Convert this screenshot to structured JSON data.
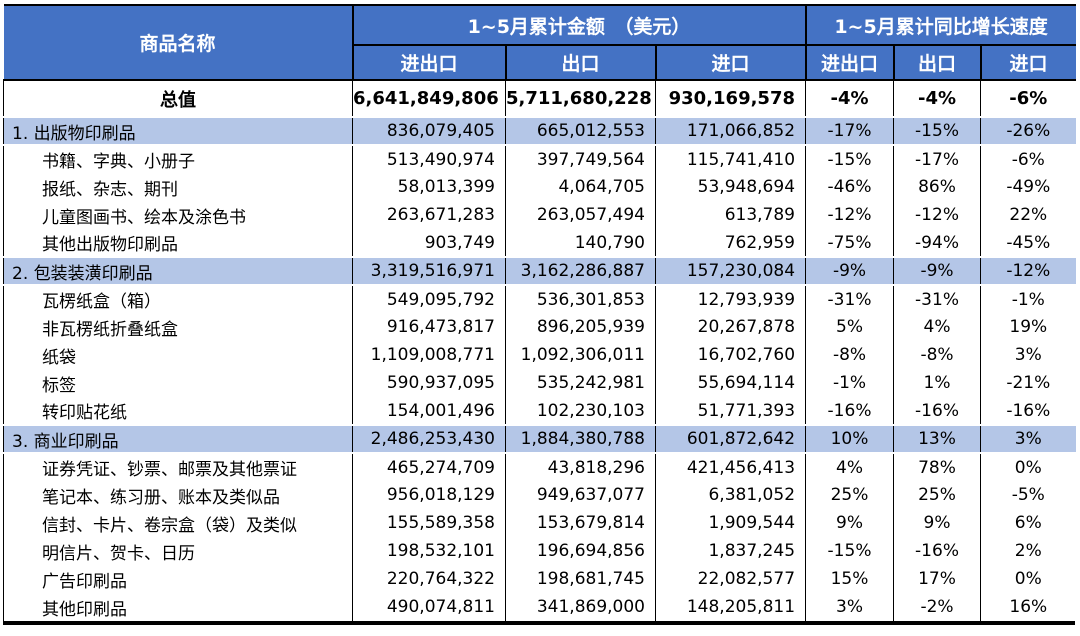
{
  "colors": {
    "header_bg": "#4472C4",
    "header_text": "#FFFFFF",
    "section_row_bg": "#B4C6E7",
    "border": "#000000",
    "body_bg": "#FFFFFF"
  },
  "chart_data": {
    "type": "table",
    "header": {
      "product": "商品名称",
      "amount_group": "1~5月累计金额　（美元）",
      "growth_group": "1~5月累计同比增长速度",
      "amount_subcols": [
        "进出口",
        "出口",
        "进口"
      ],
      "growth_subcols": [
        "进出口",
        "出口",
        "进口"
      ]
    },
    "total_row": {
      "name": "总值",
      "values": [
        "6,641,849,806",
        "5,711,680,228",
        "930,169,578",
        "-4%",
        "-4%",
        "-6%"
      ]
    },
    "rows": [
      {
        "name": "1. 出版物印刷品",
        "level": "section",
        "values": [
          "836,079,405",
          "665,012,553",
          "171,066,852",
          "-17%",
          "-15%",
          "-26%"
        ]
      },
      {
        "name": "书籍、字典、小册子",
        "level": "item",
        "values": [
          "513,490,974",
          "397,749,564",
          "115,741,410",
          "-15%",
          "-17%",
          "-6%"
        ]
      },
      {
        "name": "报纸、杂志、期刊",
        "level": "item",
        "values": [
          "58,013,399",
          "4,064,705",
          "53,948,694",
          "-46%",
          "86%",
          "-49%"
        ]
      },
      {
        "name": "儿童图画书、绘本及涂色书",
        "level": "item",
        "values": [
          "263,671,283",
          "263,057,494",
          "613,789",
          "-12%",
          "-12%",
          "22%"
        ]
      },
      {
        "name": "其他出版物印刷品",
        "level": "item",
        "values": [
          "903,749",
          "140,790",
          "762,959",
          "-75%",
          "-94%",
          "-45%"
        ]
      },
      {
        "name": "2. 包装装潢印刷品",
        "level": "section",
        "values": [
          "3,319,516,971",
          "3,162,286,887",
          "157,230,084",
          "-9%",
          "-9%",
          "-12%"
        ]
      },
      {
        "name": "瓦楞纸盒（箱）",
        "level": "item",
        "values": [
          "549,095,792",
          "536,301,853",
          "12,793,939",
          "-31%",
          "-31%",
          "-1%"
        ]
      },
      {
        "name": "非瓦楞纸折叠纸盒",
        "level": "item",
        "values": [
          "916,473,817",
          "896,205,939",
          "20,267,878",
          "5%",
          "4%",
          "19%"
        ]
      },
      {
        "name": "纸袋",
        "level": "item",
        "values": [
          "1,109,008,771",
          "1,092,306,011",
          "16,702,760",
          "-8%",
          "-8%",
          "3%"
        ]
      },
      {
        "name": "标签",
        "level": "item",
        "values": [
          "590,937,095",
          "535,242,981",
          "55,694,114",
          "-1%",
          "1%",
          "-21%"
        ]
      },
      {
        "name": "转印贴花纸",
        "level": "item",
        "values": [
          "154,001,496",
          "102,230,103",
          "51,771,393",
          "-16%",
          "-16%",
          "-16%"
        ]
      },
      {
        "name": "3. 商业印刷品",
        "level": "section",
        "values": [
          "2,486,253,430",
          "1,884,380,788",
          "601,872,642",
          "10%",
          "13%",
          "3%"
        ]
      },
      {
        "name": "证券凭证、钞票、邮票及其他票证",
        "level": "item",
        "values": [
          "465,274,709",
          "43,818,296",
          "421,456,413",
          "4%",
          "78%",
          "0%"
        ]
      },
      {
        "name": "笔记本、练习册、账本及类似品",
        "level": "item",
        "values": [
          "956,018,129",
          "949,637,077",
          "6,381,052",
          "25%",
          "25%",
          "-5%"
        ]
      },
      {
        "name": "信封、卡片、卷宗盒（袋）及类似",
        "level": "item",
        "values": [
          "155,589,358",
          "153,679,814",
          "1,909,544",
          "9%",
          "9%",
          "6%"
        ]
      },
      {
        "name": "明信片、贺卡、日历",
        "level": "item",
        "values": [
          "198,532,101",
          "196,694,856",
          "1,837,245",
          "-15%",
          "-16%",
          "2%"
        ]
      },
      {
        "name": "广告印刷品",
        "level": "item",
        "values": [
          "220,764,322",
          "198,681,745",
          "22,082,577",
          "15%",
          "17%",
          "0%"
        ]
      },
      {
        "name": "其他印刷品",
        "level": "item",
        "values": [
          "490,074,811",
          "341,869,000",
          "148,205,811",
          "3%",
          "-2%",
          "16%"
        ]
      }
    ]
  }
}
